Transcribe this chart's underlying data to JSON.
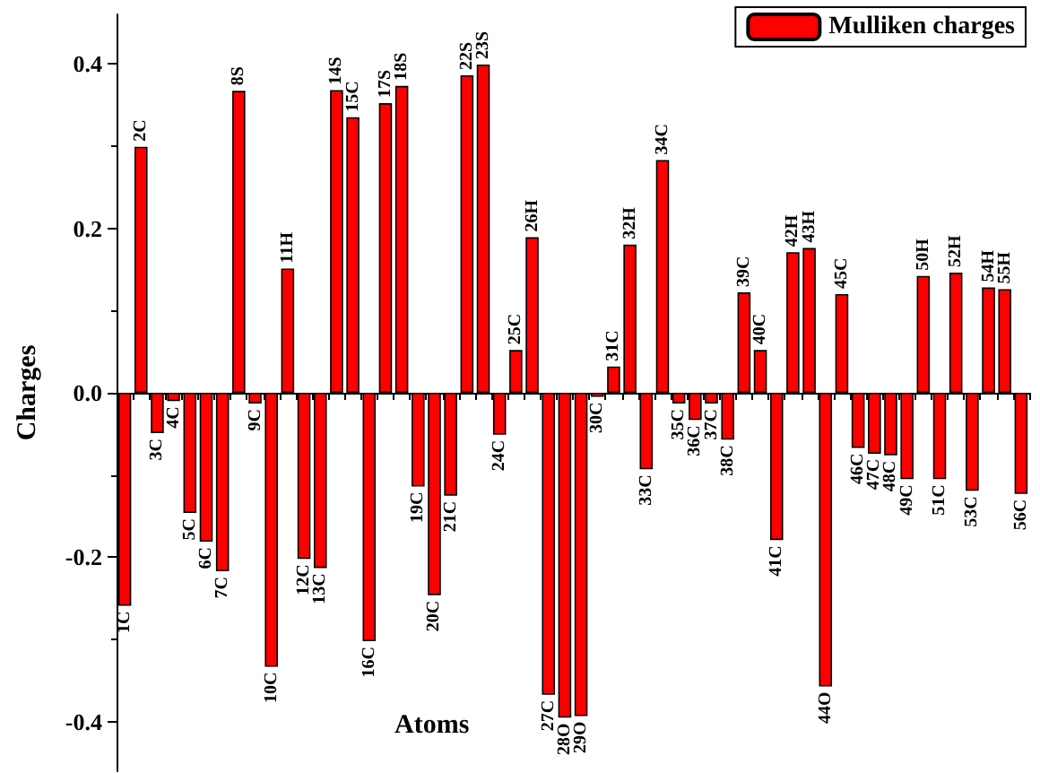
{
  "chart_data": {
    "type": "bar",
    "xlabel": "Atoms",
    "ylabel": "Charges",
    "categories": [
      "1C",
      "2C",
      "3C",
      "4C",
      "5C",
      "6C",
      "7C",
      "8S",
      "9C",
      "10C",
      "11H",
      "12C",
      "13C",
      "14S",
      "15C",
      "16C",
      "17S",
      "18S",
      "19C",
      "20C",
      "21C",
      "22S",
      "23S",
      "24C",
      "25C",
      "26H",
      "27C",
      "28O",
      "29O",
      "30C",
      "31C",
      "32H",
      "33C",
      "34C",
      "35C",
      "36C",
      "37C",
      "38C",
      "39C",
      "40C",
      "41C",
      "42H",
      "43H",
      "44O",
      "45C",
      "46C",
      "47C",
      "48C",
      "49C",
      "50H",
      "51C",
      "52H",
      "53C",
      "54H",
      "55H",
      "56C"
    ],
    "series": [
      {
        "name": "Mulliken charges",
        "color": "#ff0000",
        "values": [
          -0.259,
          0.299,
          -0.049,
          -0.01,
          -0.146,
          -0.181,
          -0.217,
          0.367,
          -0.013,
          -0.333,
          0.151,
          -0.202,
          -0.213,
          0.368,
          0.335,
          -0.302,
          0.352,
          0.373,
          -0.114,
          -0.246,
          -0.125,
          0.386,
          0.399,
          -0.051,
          0.052,
          0.189,
          -0.367,
          -0.395,
          -0.393,
          -0.005,
          0.032,
          0.18,
          -0.093,
          0.283,
          -0.013,
          -0.033,
          -0.013,
          -0.057,
          0.122,
          0.052,
          -0.179,
          0.171,
          0.176,
          -0.357,
          0.12,
          -0.067,
          -0.074,
          -0.076,
          -0.105,
          0.142,
          -0.105,
          0.146,
          -0.119,
          0.128,
          0.126,
          -0.123
        ]
      }
    ],
    "ylim": [
      -0.46,
      0.46
    ],
    "yticks": [
      {
        "value": -0.4,
        "label": "-0.4"
      },
      {
        "value": -0.2,
        "label": "-0.2"
      },
      {
        "value": 0,
        "label": "0.0"
      },
      {
        "value": 0.2,
        "label": "0.2"
      },
      {
        "value": 0.4,
        "label": "0.4"
      }
    ],
    "grid": false,
    "legend": "top right"
  }
}
